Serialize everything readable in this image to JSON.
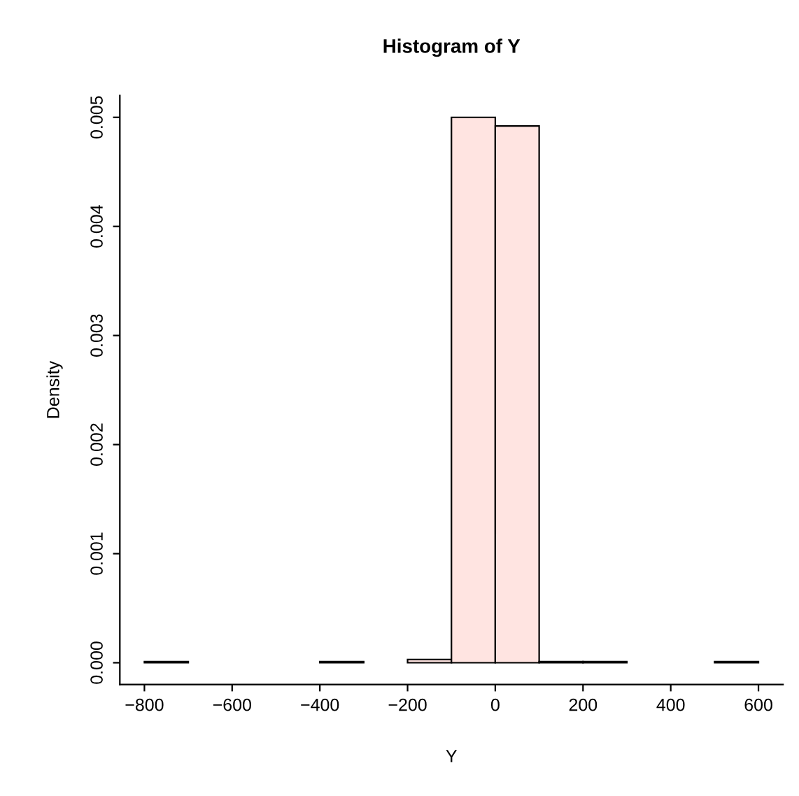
{
  "chart_data": {
    "type": "histogram",
    "title": "Histogram of Y",
    "xlabel": "Y",
    "ylabel": "Density",
    "bins": [
      -800,
      -700,
      -600,
      -500,
      -400,
      -300,
      -200,
      -100,
      0,
      100,
      200,
      300,
      400,
      500,
      600
    ],
    "values": [
      1e-05,
      0,
      0,
      0,
      1e-05,
      0,
      3e-05,
      0.005,
      0.00492,
      1e-05,
      1e-05,
      0,
      0,
      1e-05
    ],
    "color": "#ffe4e1",
    "xlim": [
      -856,
      656
    ],
    "ylim": [
      -0.0002,
      0.0052
    ],
    "xticks": [
      {
        "value": -800,
        "label": "−800"
      },
      {
        "value": -600,
        "label": "−600"
      },
      {
        "value": -400,
        "label": "−400"
      },
      {
        "value": -200,
        "label": "−200"
      },
      0,
      200,
      400,
      600
    ],
    "yticks": [
      {
        "value": 0,
        "label": "0.000"
      },
      0.001,
      0.002,
      0.003,
      0.004,
      0.005
    ],
    "grid": false
  }
}
